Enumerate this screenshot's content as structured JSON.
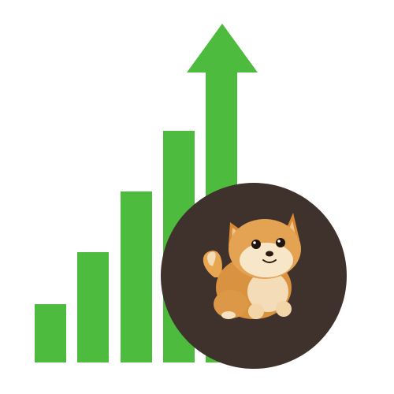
{
  "colors": {
    "background": "#ffffff",
    "bars": "#4dbb3d",
    "badge": "#3f312b",
    "fur": "#d9923f",
    "fur_light": "#f4dcb8",
    "eye": "#20140f"
  },
  "graphic": {
    "bar_levels": [
      0.16,
      0.3,
      0.46,
      0.61,
      1.0
    ],
    "icons": [
      "growth-bars-icon",
      "up-arrow-icon",
      "shiba-dog-icon"
    ]
  }
}
